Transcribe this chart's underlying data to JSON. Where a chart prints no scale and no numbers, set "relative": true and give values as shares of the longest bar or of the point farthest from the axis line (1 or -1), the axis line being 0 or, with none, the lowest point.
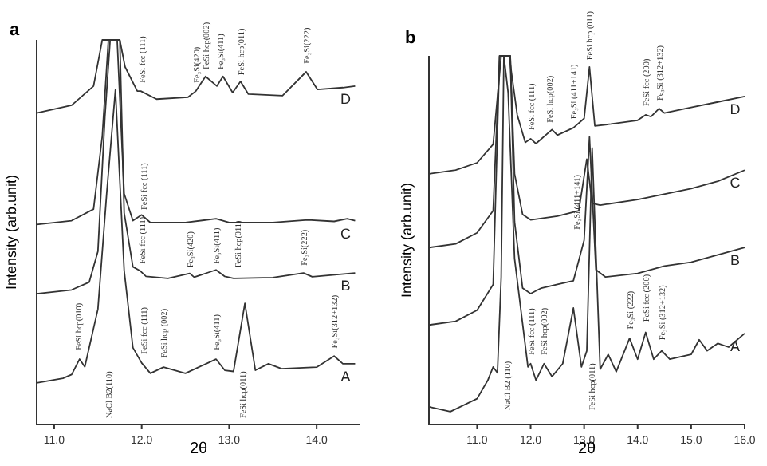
{
  "chart_data": [
    {
      "type": "line",
      "title": "a",
      "xlabel": "2θ",
      "ylabel": "Intensity (arb.unit)",
      "relative": true,
      "xlim": [
        10.8,
        14.5
      ],
      "xticks": [
        {
          "value": 11,
          "label": "11.0"
        },
        {
          "value": 12,
          "label": "12.0"
        },
        {
          "value": 13,
          "label": "13.0"
        },
        {
          "value": 14,
          "label": "14.0"
        }
      ],
      "tick_labels": "x",
      "series": [
        {
          "name": "A",
          "color": "#333333",
          "x": [
            10.8,
            11.1,
            11.2,
            11.29,
            11.35,
            11.5,
            11.6,
            11.7,
            11.8,
            11.9,
            12.0,
            12.1,
            12.25,
            12.5,
            12.85,
            12.95,
            13.05,
            13.18,
            13.3,
            13.45,
            13.6,
            14.0,
            14.2,
            14.3,
            14.44
          ],
          "values": [
            0.108,
            0.12,
            0.13,
            0.17,
            0.15,
            0.3,
            0.6,
            0.87,
            0.4,
            0.2,
            0.16,
            0.133,
            0.149,
            0.133,
            0.17,
            0.141,
            0.138,
            0.315,
            0.141,
            0.158,
            0.145,
            0.149,
            0.178,
            0.158,
            0.158
          ]
        },
        {
          "name": "B",
          "color": "#333333",
          "x": [
            10.8,
            11.2,
            11.4,
            11.5,
            11.58,
            11.64,
            11.75,
            11.8,
            11.9,
            11.98,
            12.05,
            12.3,
            12.55,
            12.6,
            12.85,
            12.95,
            13.05,
            13.5,
            13.85,
            13.95,
            14.44
          ],
          "values": [
            0.34,
            0.35,
            0.37,
            0.45,
            0.8,
            1,
            1,
            0.55,
            0.41,
            0.4,
            0.385,
            0.38,
            0.393,
            0.383,
            0.402,
            0.385,
            0.38,
            0.382,
            0.394,
            0.384,
            0.394
          ]
        },
        {
          "name": "C",
          "color": "#333333",
          "x": [
            10.8,
            11.2,
            11.45,
            11.55,
            11.62,
            11.72,
            11.8,
            11.9,
            12.0,
            12.1,
            12.5,
            12.85,
            13.0,
            13.5,
            13.9,
            14.2,
            14.35,
            14.44
          ],
          "values": [
            0.52,
            0.53,
            0.56,
            0.75,
            1,
            1,
            0.6,
            0.53,
            0.545,
            0.525,
            0.525,
            0.535,
            0.525,
            0.525,
            0.532,
            0.528,
            0.535,
            0.53
          ]
        },
        {
          "name": "D",
          "color": "#333333",
          "x": [
            10.8,
            11.2,
            11.45,
            11.55,
            11.65,
            11.75,
            11.81,
            11.95,
            11.99,
            12.17,
            12.53,
            12.62,
            12.73,
            12.86,
            12.93,
            13.04,
            13.13,
            13.22,
            13.61,
            13.88,
            14.01,
            14.3,
            14.44
          ],
          "values": [
            0.81,
            0.83,
            0.88,
            1,
            1,
            1,
            0.93,
            0.867,
            0.867,
            0.846,
            0.851,
            0.867,
            0.905,
            0.88,
            0.905,
            0.863,
            0.892,
            0.859,
            0.855,
            0.917,
            0.871,
            0.876,
            0.88
          ]
        }
      ],
      "annotations": [
        {
          "text": "FeSi fcc (111)",
          "x": 12.0,
          "y": 0.88
        },
        {
          "text": "Fe₃Si(420)",
          "x": 12.62,
          "y": 0.88
        },
        {
          "text": "FeSi hcp(002)",
          "x": 12.73,
          "y": 0.915
        },
        {
          "text": "Fe₃Si(411)",
          "x": 12.9,
          "y": 0.915
        },
        {
          "text": "FeSi hcp(011)",
          "x": 13.13,
          "y": 0.9
        },
        {
          "text": "Fe₃Si(222)",
          "x": 13.88,
          "y": 0.93
        },
        {
          "text": "FeSi fcc (111)",
          "x": 12.02,
          "y": 0.55
        },
        {
          "text": "FeSi fcc (111)",
          "x": 12.0,
          "y": 0.41
        },
        {
          "text": "Fe₃Si(420)",
          "x": 12.55,
          "y": 0.4
        },
        {
          "text": "Fe₃Si(411)",
          "x": 12.85,
          "y": 0.41
        },
        {
          "text": "FeSi hcp(011)",
          "x": 13.1,
          "y": 0.4
        },
        {
          "text": "Fe₃Si(222)",
          "x": 13.85,
          "y": 0.405
        },
        {
          "text": "FeSi hcp(010)",
          "x": 11.27,
          "y": 0.185
        },
        "NaCl B2(110)",
        {
          "text": "FeSi fcc (111)",
          "x": 12.02,
          "y": 0.175
        },
        {
          "text": "FeSi hcp (002)",
          "x": 12.25,
          "y": 0.165
        },
        {
          "text": "Fe₃Si(411)",
          "x": 12.85,
          "y": 0.185
        },
        "FeSi hcp(011)",
        {
          "text": "Fe₃Si(312+132)",
          "x": 14.2,
          "y": 0.19
        }
      ]
    },
    {
      "type": "line",
      "title": "b",
      "xlabel": "2θ",
      "ylabel": "Intensity (arb.unit)",
      "relative": true,
      "xlim": [
        10.1,
        16.0
      ],
      "xticks": [
        {
          "value": 11,
          "label": "11.0"
        },
        {
          "value": 12,
          "label": "12.0"
        },
        {
          "value": 13,
          "label": "13.0"
        },
        {
          "value": 14,
          "label": "14.0"
        },
        {
          "value": 15,
          "label": "15.0"
        },
        {
          "value": 16,
          "label": "16.0"
        }
      ],
      "tick_labels": "x",
      "series": [
        {
          "name": "A",
          "color": "#333333",
          "x": [
            10.1,
            10.5,
            11.0,
            11.2,
            11.3,
            11.38,
            11.45,
            11.5,
            11.58,
            11.7,
            11.95,
            12.0,
            12.1,
            12.25,
            12.4,
            12.6,
            12.8,
            12.95,
            13.05,
            13.15,
            13.3,
            13.45,
            13.6,
            13.85,
            14.0,
            14.15,
            14.3,
            14.45,
            14.6,
            15.0,
            15.15,
            15.3,
            15.5,
            15.7,
            16.0
          ],
          "values": [
            0.048,
            0.035,
            0.07,
            0.12,
            0.156,
            0.14,
            0.4,
            1,
            0.9,
            0.45,
            0.156,
            0.165,
            0.12,
            0.165,
            0.13,
            0.165,
            0.316,
            0.156,
            0.2,
            0.75,
            0.15,
            0.19,
            0.143,
            0.234,
            0.177,
            0.25,
            0.177,
            0.2,
            0.177,
            0.19,
            0.23,
            0.2,
            0.22,
            0.21,
            0.247
          ]
        },
        {
          "name": "B",
          "color": "#333333",
          "x": [
            10.1,
            10.6,
            11.0,
            11.3,
            11.42,
            11.62,
            11.7,
            11.85,
            12.0,
            12.2,
            12.5,
            12.8,
            13.0,
            13.1,
            13.22,
            13.4,
            14.0,
            14.5,
            15.0,
            15.5,
            16.0
          ],
          "values": [
            0.27,
            0.28,
            0.31,
            0.38,
            1,
            1,
            0.55,
            0.37,
            0.355,
            0.37,
            0.38,
            0.39,
            0.5,
            0.78,
            0.42,
            0.4,
            0.41,
            0.43,
            0.44,
            0.46,
            0.48
          ]
        },
        {
          "name": "C",
          "color": "#333333",
          "x": [
            10.1,
            10.6,
            11.0,
            11.3,
            11.42,
            11.62,
            11.7,
            11.85,
            12.0,
            12.5,
            12.9,
            13.05,
            13.15,
            13.3,
            14.0,
            15.0,
            15.5,
            16.0
          ],
          "values": [
            0.48,
            0.49,
            0.52,
            0.58,
            1,
            1,
            0.68,
            0.57,
            0.555,
            0.565,
            0.58,
            0.72,
            0.6,
            0.595,
            0.61,
            0.64,
            0.66,
            0.69
          ]
        },
        {
          "name": "D",
          "color": "#333333",
          "x": [
            10.1,
            10.6,
            11.0,
            11.3,
            11.45,
            11.6,
            11.75,
            11.9,
            12.0,
            12.1,
            12.4,
            12.5,
            12.8,
            13.0,
            13.1,
            13.2,
            13.5,
            14.0,
            14.15,
            14.25,
            14.4,
            14.5,
            15.0,
            15.5,
            16.0
          ],
          "values": [
            0.68,
            0.69,
            0.71,
            0.76,
            1,
            1,
            0.84,
            0.765,
            0.775,
            0.762,
            0.8,
            0.785,
            0.805,
            0.83,
            0.97,
            0.81,
            0.815,
            0.825,
            0.84,
            0.835,
            0.857,
            0.845,
            0.86,
            0.875,
            0.89
          ]
        }
      ],
      "annotations": [
        {
          "text": "FeSi fcc (111)",
          "x": 12.0,
          "y": 0.79
        },
        {
          "text": "FeSi hcp(002)",
          "x": 12.35,
          "y": 0.81
        },
        {
          "text": "Fe₃Si (411+141)",
          "x": 12.8,
          "y": 0.82
        },
        {
          "text": "FeSi hcp (011)",
          "x": 13.1,
          "y": 0.98
        },
        {
          "text": "FeSi fcc (200)",
          "x": 14.15,
          "y": 0.855
        },
        {
          "text": "Fe₃Si (312+132)",
          "x": 14.4,
          "y": 0.87
        },
        {
          "text": "Fe₃Si (411+141)",
          "x": 12.85,
          "y": 0.52
        },
        "NaCl B2 (110)",
        {
          "text": "FeSi fcc (111)",
          "x": 12.0,
          "y": 0.18
        },
        {
          "text": "FeSi hcp(002)",
          "x": 12.25,
          "y": 0.18
        },
        "FeSi hcp(011)",
        {
          "text": "Fe₃Si (222)",
          "x": 13.85,
          "y": 0.25
        },
        {
          "text": "FeSi fcc (200)",
          "x": 14.15,
          "y": 0.27
        },
        {
          "text": "Fe₃Si (312+132)",
          "x": 14.45,
          "y": 0.22
        }
      ]
    }
  ]
}
